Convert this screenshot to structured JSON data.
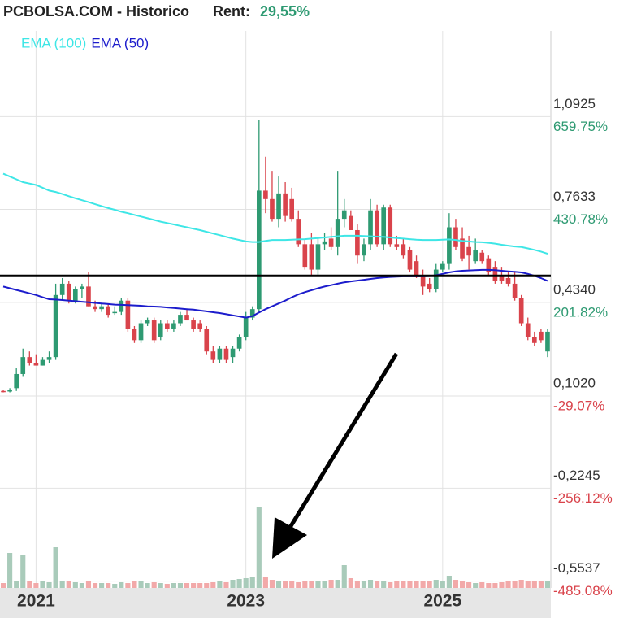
{
  "header": {
    "title": "PCBOLSA.COM - Historico",
    "rent_label": "Rent:",
    "rent_value": "29,55%"
  },
  "chart_data": {
    "type": "candlestick",
    "categories": [
      null,
      null,
      null,
      null,
      null,
      "2021",
      null,
      null,
      null,
      null,
      null,
      null,
      null,
      null,
      null,
      null,
      null,
      null,
      null,
      null,
      null,
      null,
      null,
      null,
      null,
      null,
      null,
      null,
      null,
      null,
      null,
      null,
      null,
      null,
      null,
      null,
      null,
      "2023",
      null,
      null,
      null,
      null,
      null,
      null,
      null,
      null,
      null,
      null,
      null,
      null,
      null,
      null,
      null,
      null,
      null,
      null,
      null,
      null,
      null,
      null,
      null,
      null,
      null,
      null,
      null,
      null,
      null,
      "2025",
      null,
      null,
      null,
      null,
      null,
      null,
      null,
      null,
      null,
      null,
      null,
      null,
      null,
      null,
      null,
      null
    ],
    "open": [
      0.12,
      0.118,
      0.13,
      0.18,
      0.24,
      0.22,
      0.21,
      0.23,
      0.24,
      0.46,
      0.5,
      0.44,
      0.48,
      0.49,
      0.42,
      0.41,
      0.42,
      0.4,
      0.4,
      0.44,
      0.34,
      0.3,
      0.36,
      0.37,
      0.31,
      0.36,
      0.34,
      0.36,
      0.39,
      0.37,
      0.36,
      0.34,
      0.26,
      0.23,
      0.27,
      0.24,
      0.27,
      0.31,
      0.38,
      0.41,
      0.83,
      0.8,
      0.73,
      0.82,
      0.8,
      0.73,
      0.64,
      0.64,
      0.55,
      0.64,
      0.66,
      0.63,
      0.73,
      0.74,
      0.69,
      0.6,
      0.64,
      0.76,
      0.64,
      0.77,
      0.64,
      0.64,
      0.62,
      0.58,
      0.53,
      0.5,
      0.48,
      0.55,
      0.57,
      0.7,
      0.66,
      0.63,
      0.58,
      0.61,
      0.59,
      0.56,
      0.53,
      0.52,
      0.5,
      0.45,
      0.36,
      0.31,
      0.33,
      0.26
    ],
    "high": [
      0.125,
      0.13,
      0.2,
      0.27,
      0.26,
      0.25,
      0.24,
      0.26,
      0.5,
      0.52,
      0.51,
      0.49,
      0.5,
      0.54,
      0.44,
      0.43,
      0.43,
      0.42,
      0.45,
      0.45,
      0.35,
      0.37,
      0.38,
      0.38,
      0.37,
      0.37,
      0.37,
      0.4,
      0.41,
      0.38,
      0.37,
      0.35,
      0.28,
      0.28,
      0.28,
      0.28,
      0.32,
      0.4,
      0.42,
      1.08,
      0.95,
      0.9,
      0.88,
      0.86,
      0.84,
      0.76,
      0.66,
      0.68,
      0.66,
      0.68,
      0.7,
      0.9,
      0.8,
      0.76,
      0.71,
      0.66,
      0.8,
      0.78,
      0.78,
      0.78,
      0.67,
      0.66,
      0.63,
      0.6,
      0.55,
      0.52,
      0.57,
      0.58,
      0.75,
      0.73,
      0.7,
      0.67,
      0.66,
      0.62,
      0.6,
      0.58,
      0.56,
      0.54,
      0.54,
      0.46,
      0.38,
      0.33,
      0.34,
      0.34
    ],
    "low": [
      0.115,
      0.115,
      0.12,
      0.17,
      0.21,
      0.21,
      0.21,
      0.22,
      0.23,
      0.44,
      0.43,
      0.43,
      0.45,
      0.42,
      0.4,
      0.4,
      0.38,
      0.39,
      0.39,
      0.33,
      0.29,
      0.29,
      0.35,
      0.29,
      0.3,
      0.33,
      0.33,
      0.35,
      0.37,
      0.33,
      0.33,
      0.25,
      0.22,
      0.22,
      0.22,
      0.22,
      0.26,
      0.3,
      0.37,
      0.4,
      0.75,
      0.72,
      0.7,
      0.72,
      0.72,
      0.63,
      0.55,
      0.53,
      0.53,
      0.62,
      0.62,
      0.6,
      0.7,
      0.69,
      0.57,
      0.58,
      0.62,
      0.63,
      0.62,
      0.63,
      0.62,
      0.59,
      0.54,
      0.52,
      0.46,
      0.47,
      0.47,
      0.54,
      0.55,
      0.62,
      0.58,
      0.55,
      0.57,
      0.57,
      0.53,
      0.5,
      0.5,
      0.49,
      0.44,
      0.35,
      0.3,
      0.28,
      0.29,
      0.24
    ],
    "close": [
      0.118,
      0.125,
      0.18,
      0.24,
      0.22,
      0.21,
      0.23,
      0.24,
      0.46,
      0.5,
      0.44,
      0.48,
      0.49,
      0.42,
      0.41,
      0.42,
      0.39,
      0.4,
      0.44,
      0.34,
      0.3,
      0.36,
      0.37,
      0.3,
      0.36,
      0.34,
      0.36,
      0.39,
      0.37,
      0.34,
      0.34,
      0.26,
      0.23,
      0.27,
      0.23,
      0.27,
      0.31,
      0.38,
      0.41,
      0.83,
      0.8,
      0.73,
      0.82,
      0.74,
      0.73,
      0.64,
      0.56,
      0.55,
      0.64,
      0.65,
      0.63,
      0.73,
      0.76,
      0.69,
      0.6,
      0.64,
      0.76,
      0.64,
      0.77,
      0.64,
      0.63,
      0.6,
      0.55,
      0.53,
      0.49,
      0.48,
      0.55,
      0.57,
      0.7,
      0.63,
      0.59,
      0.6,
      0.62,
      0.58,
      0.54,
      0.51,
      0.51,
      0.5,
      0.45,
      0.36,
      0.31,
      0.29,
      0.3,
      0.33
    ],
    "volume": [
      6,
      43,
      8,
      40,
      8,
      6,
      8,
      7,
      50,
      9,
      8,
      7,
      6,
      8,
      6,
      6,
      6,
      5,
      7,
      6,
      8,
      9,
      6,
      7,
      6,
      5,
      6,
      6,
      6,
      6,
      6,
      6,
      7,
      8,
      7,
      10,
      11,
      12,
      14,
      100,
      14,
      10,
      9,
      8,
      8,
      7,
      9,
      8,
      8,
      8,
      10,
      10,
      28,
      12,
      9,
      8,
      10,
      8,
      8,
      7,
      8,
      9,
      8,
      9,
      9,
      8,
      10,
      8,
      15,
      10,
      8,
      7,
      6,
      7,
      6,
      6,
      7,
      8,
      9,
      10,
      9,
      9,
      9,
      8
    ],
    "up_color": "#2e9a72",
    "down_color": "#d9434b",
    "up_volume_color": "#a9cbba",
    "down_volume_color": "#f2a9a9",
    "series": [
      {
        "name": "EMA (100)",
        "color": "#3ee6e6",
        "values": [
          0.89,
          0.88,
          0.87,
          0.86,
          0.855,
          0.85,
          0.84,
          0.83,
          0.825,
          0.818,
          0.81,
          0.803,
          0.796,
          0.789,
          0.782,
          0.775,
          0.768,
          0.762,
          0.755,
          0.75,
          0.744,
          0.738,
          0.732,
          0.726,
          0.72,
          0.715,
          0.71,
          0.705,
          0.7,
          0.695,
          0.69,
          0.684,
          0.678,
          0.672,
          0.666,
          0.66,
          0.655,
          0.65,
          0.648,
          0.648,
          0.652,
          0.655,
          0.655,
          0.655,
          0.656,
          0.657,
          0.658,
          0.66,
          0.662,
          0.664,
          0.666,
          0.668,
          0.67,
          0.67,
          0.67,
          0.669,
          0.668,
          0.667,
          0.666,
          0.664,
          0.662,
          0.66,
          0.658,
          0.656,
          0.655,
          0.655,
          0.655,
          0.656,
          0.657,
          0.655,
          0.652,
          0.65,
          0.648,
          0.647,
          0.645,
          0.642,
          0.638,
          0.635,
          0.632,
          0.63,
          0.625,
          0.62,
          0.614,
          0.606
        ]
      },
      {
        "name": "EMA (50)",
        "color": "#1c1ccc",
        "values": [
          0.49,
          0.484,
          0.478,
          0.472,
          0.466,
          0.46,
          0.452,
          0.445,
          0.444,
          0.442,
          0.44,
          0.438,
          0.436,
          0.434,
          0.432,
          0.43,
          0.428,
          0.426,
          0.425,
          0.424,
          0.423,
          0.422,
          0.42,
          0.419,
          0.418,
          0.416,
          0.414,
          0.412,
          0.41,
          0.408,
          0.405,
          0.402,
          0.399,
          0.396,
          0.392,
          0.388,
          0.384,
          0.38,
          0.385,
          0.398,
          0.41,
          0.42,
          0.43,
          0.44,
          0.452,
          0.462,
          0.47,
          0.477,
          0.484,
          0.49,
          0.495,
          0.5,
          0.505,
          0.508,
          0.511,
          0.514,
          0.517,
          0.52,
          0.522,
          0.524,
          0.525,
          0.526,
          0.526,
          0.526,
          0.526,
          0.527,
          0.53,
          0.535,
          0.54,
          0.544,
          0.546,
          0.547,
          0.548,
          0.549,
          0.549,
          0.548,
          0.546,
          0.544,
          0.542,
          0.54,
          0.535,
          0.528,
          0.52,
          0.51
        ]
      }
    ],
    "hline": 0.528,
    "ylim": [
      -0.578,
      1.396
    ],
    "yticks": [
      {
        "value": 1.0925,
        "label": "1,0925"
      },
      {
        "value": 0.7633,
        "label": "0,7633"
      },
      {
        "value": 0.434,
        "label": "0,4340"
      },
      {
        "value": 0.102,
        "label": "0,1020"
      },
      {
        "value": -0.2245,
        "label": "-0,2245"
      },
      {
        "value": -0.5537,
        "label": "-0,5537"
      }
    ],
    "y2lim": [
      -501.9,
      870.8
    ],
    "y2ticks": [
      {
        "value": 659.75,
        "label": "659.75%"
      },
      {
        "value": 430.78,
        "label": "430.78%"
      },
      {
        "value": 201.82,
        "label": "201.82%"
      },
      {
        "value": -29.07,
        "label": "-29.07%"
      },
      {
        "value": -256.12,
        "label": "-256.12%"
      },
      {
        "value": -485.08,
        "label": "-485.08%"
      }
    ],
    "grid": true
  }
}
